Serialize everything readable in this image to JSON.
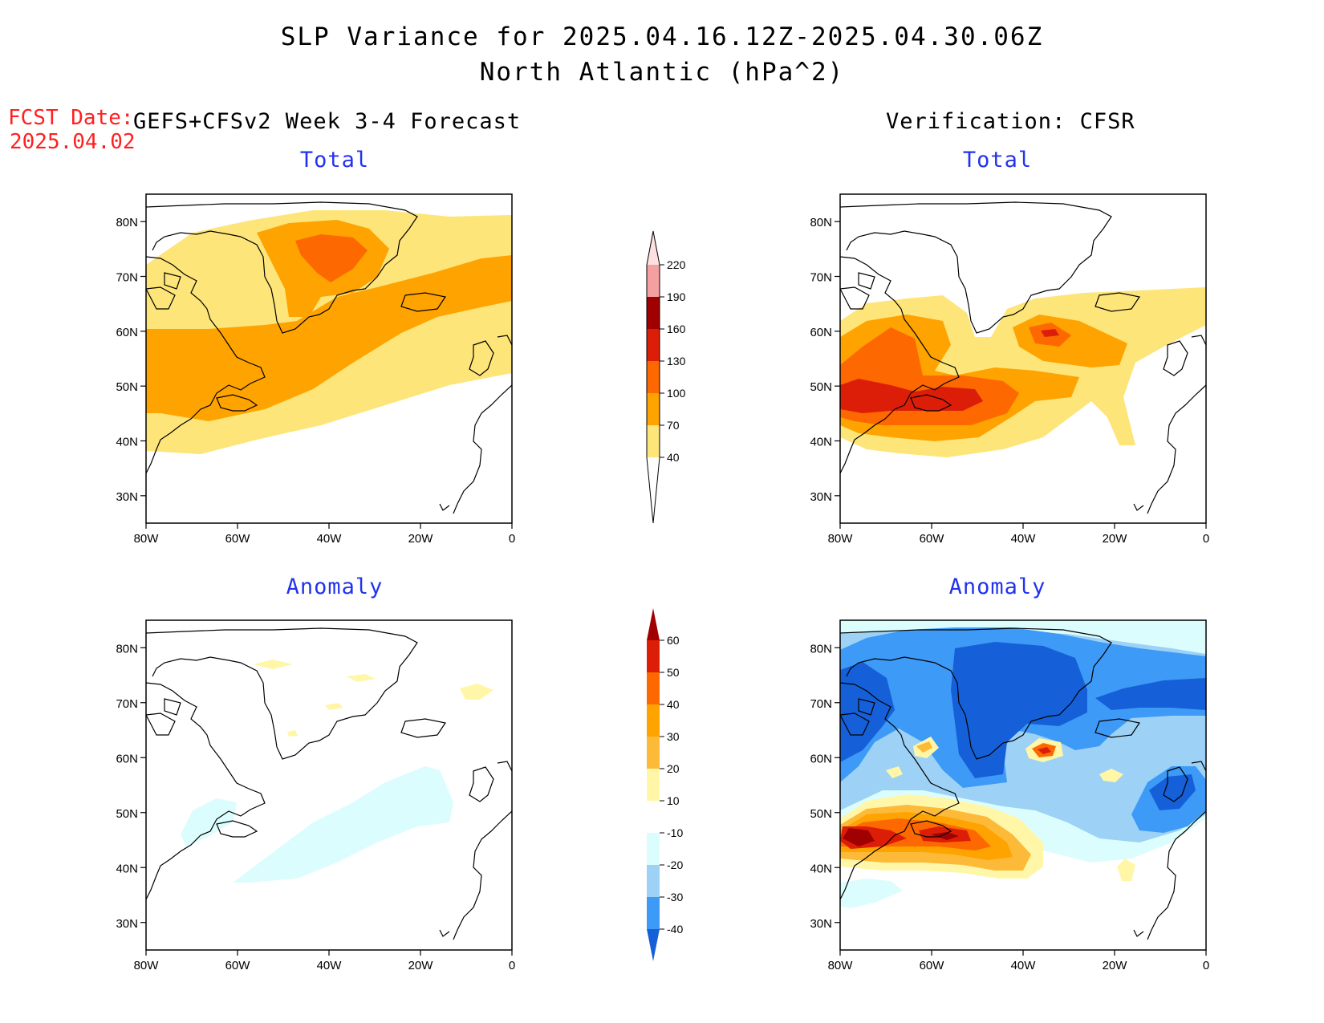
{
  "title": {
    "line1": "SLP Variance for 2025.04.16.12Z-2025.04.30.06Z",
    "line2": "North Atlantic (hPa^2)"
  },
  "forecast": {
    "label": "FCST Date:",
    "date": "2025.04.02"
  },
  "columns": {
    "left": "GEFS+CFSv2 Week 3-4 Forecast",
    "right": "Verification: CFSR"
  },
  "panels": {
    "tl": {
      "title": "Total"
    },
    "tr": {
      "title": "Total"
    },
    "bl": {
      "title": "Anomaly"
    },
    "br": {
      "title": "Anomaly"
    }
  },
  "axes": {
    "lon_ticks": [
      "80W",
      "60W",
      "40W",
      "20W",
      "0"
    ],
    "lat_ticks": [
      "80N",
      "70N",
      "60N",
      "50N",
      "40N",
      "30N"
    ],
    "lon_range": [
      -80,
      0
    ],
    "lat_range": [
      25,
      85
    ]
  },
  "colorbars": {
    "total": {
      "levels": [
        "40",
        "70",
        "100",
        "130",
        "160",
        "190",
        "220"
      ],
      "colors": [
        "#fde57a",
        "#fea300",
        "#fd6800",
        "#dc1e08",
        "#a00000",
        "#f4a0a0",
        "#fde0e0"
      ]
    },
    "anomaly": {
      "levels": [
        "60",
        "50",
        "40",
        "30",
        "20",
        "10",
        "-10",
        "-20",
        "-30",
        "-40"
      ],
      "colors": [
        "#a00000",
        "#dc1e08",
        "#fd6800",
        "#fea300",
        "#fdb938",
        "#fff7a7",
        "#ffffff",
        "#dcfdfd",
        "#9dd2f6",
        "#3d9af6",
        "#1560d8"
      ]
    }
  }
}
